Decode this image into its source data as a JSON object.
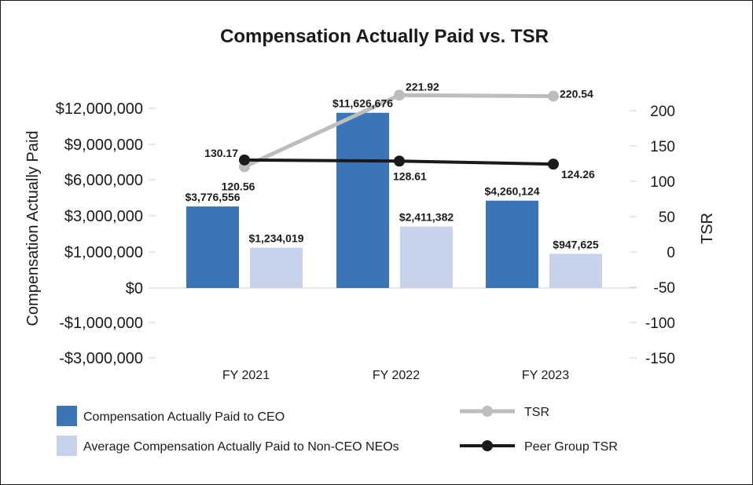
{
  "chart_data": {
    "type": "bar",
    "title": "Compensation Actually Paid vs. TSR",
    "categories": [
      "FY 2021",
      "FY 2022",
      "FY 2023"
    ],
    "ylabel": "Compensation Actually Paid",
    "y2label": "TSR",
    "left_ticks": [
      {
        "label": "$12,000,000",
        "value": 12000000
      },
      {
        "label": "$9,000,000",
        "value": 9000000
      },
      {
        "label": "$6,000,000",
        "value": 6000000
      },
      {
        "label": "$3,000,000",
        "value": 3000000
      },
      {
        "label": "$1,000,000",
        "value": 1000000
      },
      {
        "label": "$0",
        "value": 0
      },
      {
        "label": "-$1,000,000",
        "value": -1000000
      },
      {
        "label": "-$3,000,000",
        "value": -3000000
      }
    ],
    "right_ticks": [
      {
        "label": "200",
        "value": 200
      },
      {
        "label": "150",
        "value": 150
      },
      {
        "label": "100",
        "value": 100
      },
      {
        "label": "50",
        "value": 50
      },
      {
        "label": "0",
        "value": 0
      },
      {
        "label": "-50",
        "value": -50
      },
      {
        "label": "-100",
        "value": -100
      },
      {
        "label": "-150",
        "value": -150
      }
    ],
    "series": [
      {
        "name": "Compensation Actually Paid to CEO",
        "kind": "bar",
        "axis": "left",
        "color": "#3a75b6",
        "values": [
          3776556,
          11626676,
          4260124
        ],
        "labels": [
          "$3,776,556",
          "$11,626,676",
          "$4,260,124"
        ]
      },
      {
        "name": "Average Compensation Actually Paid to Non-CEO NEOs",
        "kind": "bar",
        "axis": "left",
        "color": "#c7d3ea",
        "values": [
          1234019,
          2411382,
          947625
        ],
        "labels": [
          "$1,234,019",
          "$2,411,382",
          "$947,625"
        ]
      },
      {
        "name": "TSR",
        "kind": "line",
        "axis": "right",
        "color": "#bdbdbd",
        "values": [
          120.56,
          221.92,
          220.54
        ],
        "labels": [
          "120.56",
          "221.92",
          "220.54"
        ]
      },
      {
        "name": "Peer Group TSR",
        "kind": "line",
        "axis": "right",
        "color": "#1a1a1a",
        "values": [
          130.17,
          128.61,
          124.26
        ],
        "labels": [
          "130.17",
          "128.61",
          "124.26"
        ]
      }
    ]
  }
}
